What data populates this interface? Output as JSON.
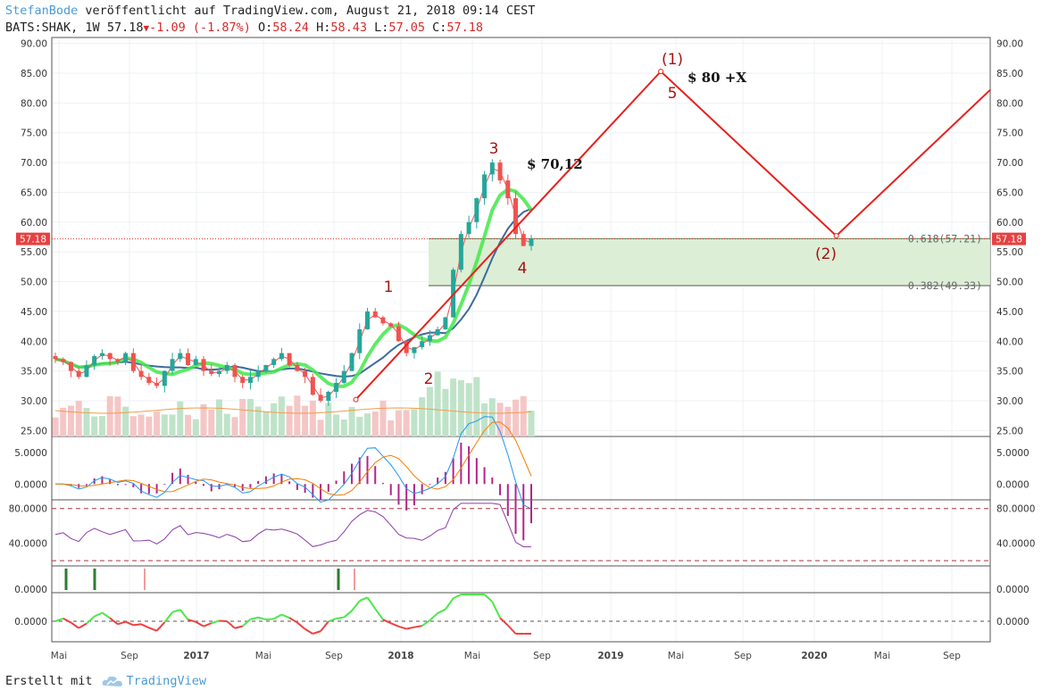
{
  "header": {
    "author": "StefanBode",
    "published_text": " veröffentlicht auf TradingView.com, August 21, 2018 09:14 CEST",
    "symbol": "BATS:SHAK, 1W",
    "last": "57.18",
    "change": "-1.09 (-1.87%)",
    "o_label": "O:",
    "o": "58.24",
    "h_label": "H:",
    "h": "58.43",
    "l_label": "L:",
    "l": "57.05",
    "c_label": "C:",
    "c": "57.18"
  },
  "footer": {
    "made_with": "Erstellt mit",
    "brand": "TradingView"
  },
  "colors": {
    "up": "#26a69a",
    "down": "#ef5350",
    "wave": "#e8201c",
    "ema_green": "#43e84a",
    "sma_blue": "#3c6b9c",
    "fib_zone": "#d8ecd0",
    "label": "#a31515"
  },
  "chart_data": {
    "type": "candlestick",
    "title": "BATS:SHAK, 1W",
    "price_axis": {
      "range": [
        24,
        91
      ],
      "ticks": [
        "25.00",
        "30.00",
        "35.00",
        "40.00",
        "45.00",
        "50.00",
        "55.00",
        "60.00",
        "65.00",
        "70.00",
        "75.00",
        "80.00",
        "85.00",
        "90.00"
      ],
      "current_price": "57.18"
    },
    "time_axis": {
      "ticks": [
        "Mai",
        "Sep",
        "2017",
        "Mai",
        "Sep",
        "2018",
        "Mai",
        "Sep",
        "2019",
        "Mai",
        "Sep",
        "2020",
        "Mai",
        "Sep"
      ]
    },
    "close_path": [
      37,
      36.5,
      35,
      34,
      36,
      37.5,
      38,
      37,
      36.5,
      38,
      35,
      34,
      33,
      32.5,
      35,
      37,
      38,
      36,
      37,
      35,
      34.5,
      35,
      36,
      34,
      33,
      34,
      35,
      36,
      37,
      38,
      36,
      35,
      34,
      31,
      30,
      31.5,
      33,
      35,
      38,
      42,
      45,
      44,
      43,
      42.5,
      40,
      38,
      39,
      40,
      41,
      42,
      44,
      52,
      58,
      60,
      64,
      68,
      70,
      67,
      64,
      58,
      56,
      57.18
    ],
    "fib_levels": [
      {
        "ratio": "0.618",
        "price": 57.21,
        "label": "0.618(57.21)"
      },
      {
        "ratio": "0.382",
        "price": 49.33,
        "label": "0.382(49.33)"
      }
    ],
    "wave_projection": [
      {
        "t": 0.324,
        "price": 30.2
      },
      {
        "t": 0.649,
        "price": 85.3
      },
      {
        "t": 0.836,
        "price": 57.7
      },
      {
        "t": 1.0,
        "price": 82.2
      }
    ],
    "wave_labels": [
      "1",
      "2",
      "3",
      "4",
      "5",
      "(1)",
      "(2)"
    ],
    "price_annotations": [
      "$ 70,12",
      "$ 80 +X"
    ],
    "macd": {
      "ticks": [
        "5.0000",
        "0.0000"
      ],
      "range": [
        -2.5,
        7.5
      ]
    },
    "rsi": {
      "ticks": [
        "80.0000",
        "40.0000"
      ],
      "levels": [
        80,
        20
      ],
      "range": [
        14,
        90
      ]
    },
    "signal": {
      "ticks": [
        "0.0000"
      ]
    },
    "osc": {
      "ticks": [
        "0.0000"
      ]
    }
  }
}
